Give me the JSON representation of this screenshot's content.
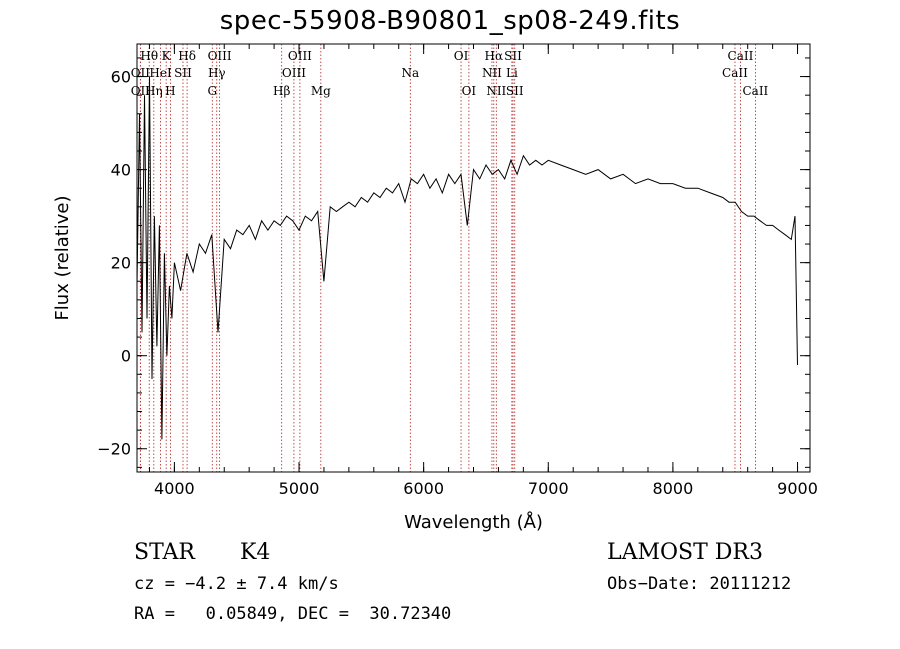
{
  "chart_data": {
    "type": "line",
    "title": "spec-55908-B90801_sp08-249.fits",
    "xlabel": "Wavelength (Å)",
    "ylabel": "Flux (relative)",
    "xlim": [
      3700,
      9100
    ],
    "ylim": [
      -25,
      67
    ],
    "xticks": [
      4000,
      5000,
      6000,
      7000,
      8000,
      9000
    ],
    "yticks": [
      -20,
      0,
      20,
      40,
      60
    ],
    "series": [
      {
        "name": "flux",
        "x": [
          3700,
          3720,
          3740,
          3760,
          3780,
          3800,
          3820,
          3840,
          3860,
          3880,
          3900,
          3920,
          3940,
          3960,
          3980,
          4000,
          4050,
          4100,
          4150,
          4200,
          4250,
          4300,
          4350,
          4400,
          4450,
          4500,
          4550,
          4600,
          4650,
          4700,
          4750,
          4800,
          4850,
          4900,
          4950,
          5000,
          5050,
          5100,
          5150,
          5200,
          5250,
          5300,
          5350,
          5400,
          5450,
          5500,
          5550,
          5600,
          5650,
          5700,
          5750,
          5800,
          5850,
          5900,
          5950,
          6000,
          6050,
          6100,
          6150,
          6200,
          6250,
          6300,
          6350,
          6400,
          6450,
          6500,
          6550,
          6600,
          6650,
          6700,
          6750,
          6800,
          6850,
          6900,
          6950,
          7000,
          7100,
          7200,
          7300,
          7400,
          7500,
          7600,
          7700,
          7800,
          7900,
          8000,
          8100,
          8200,
          8300,
          8400,
          8450,
          8500,
          8550,
          8600,
          8650,
          8700,
          8750,
          8800,
          8850,
          8900,
          8950,
          8980,
          9000
        ],
        "y": [
          15,
          52,
          5,
          56,
          8,
          60,
          -5,
          30,
          2,
          28,
          -18,
          22,
          0,
          15,
          8,
          20,
          14,
          22,
          18,
          24,
          22,
          26,
          5,
          25,
          23,
          27,
          26,
          28,
          25,
          29,
          27,
          29,
          28,
          30,
          29,
          27,
          30,
          29,
          31,
          16,
          32,
          31,
          32,
          33,
          32,
          34,
          33,
          35,
          34,
          36,
          35,
          37,
          33,
          38,
          37,
          39,
          36,
          38,
          35,
          39,
          37,
          39,
          28,
          40,
          38,
          41,
          39,
          40,
          38,
          42,
          39,
          43,
          41,
          42,
          41,
          42,
          41,
          40,
          39,
          40,
          38,
          39,
          37,
          38,
          37,
          37,
          36,
          36,
          35,
          34,
          33,
          33,
          31,
          30,
          30,
          29,
          28,
          28,
          27,
          26,
          25,
          30,
          -2
        ]
      }
    ],
    "spectral_lines": [
      {
        "label": "Hθ",
        "x": 3798,
        "row": 0
      },
      {
        "label": "OII",
        "x": 3727,
        "row": 1
      },
      {
        "label": "Hη",
        "x": 3835,
        "row": 2
      },
      {
        "label": "OII",
        "x": 3727,
        "row": 2
      },
      {
        "label": "K",
        "x": 3934,
        "row": 0
      },
      {
        "label": "HeI",
        "x": 3889,
        "row": 1
      },
      {
        "label": "H",
        "x": 3968,
        "row": 2
      },
      {
        "label": "Hδ",
        "x": 4102,
        "row": 0
      },
      {
        "label": "SII",
        "x": 4069,
        "row": 1
      },
      {
        "label": "OIII",
        "x": 4363,
        "row": 0
      },
      {
        "label": "Hγ",
        "x": 4340,
        "row": 1
      },
      {
        "label": "G",
        "x": 4304,
        "row": 2
      },
      {
        "label": "OIII",
        "x": 5007,
        "row": 0
      },
      {
        "label": "OIII",
        "x": 4959,
        "row": 1
      },
      {
        "label": "Hβ",
        "x": 4861,
        "row": 2
      },
      {
        "label": "Mg",
        "x": 5175,
        "row": 2
      },
      {
        "label": "Na",
        "x": 5893,
        "row": 1
      },
      {
        "label": "OI",
        "x": 6300,
        "row": 0
      },
      {
        "label": "OI",
        "x": 6363,
        "row": 2
      },
      {
        "label": "Hα",
        "x": 6563,
        "row": 0
      },
      {
        "label": "NII",
        "x": 6548,
        "row": 1
      },
      {
        "label": "NII",
        "x": 6583,
        "row": 2
      },
      {
        "label": "SII",
        "x": 6717,
        "row": 0
      },
      {
        "label": "Li",
        "x": 6708,
        "row": 1
      },
      {
        "label": "SII",
        "x": 6731,
        "row": 2
      },
      {
        "label": "CaII",
        "x": 8542,
        "row": 0
      },
      {
        "label": "CaII",
        "x": 8498,
        "row": 1
      },
      {
        "label": "CaII",
        "x": 8662,
        "row": 2
      }
    ],
    "colors": {
      "spectrum": "#000000",
      "line_markers": "#b22222"
    }
  },
  "info": {
    "object_class": "STAR",
    "subclass": "K4",
    "survey": "LAMOST DR3",
    "cz": "cz = −4.2 ± 7.4 km/s",
    "obs_date": "Obs−Date: 20111212",
    "coords": "RA =   0.05849, DEC =  30.72340"
  }
}
